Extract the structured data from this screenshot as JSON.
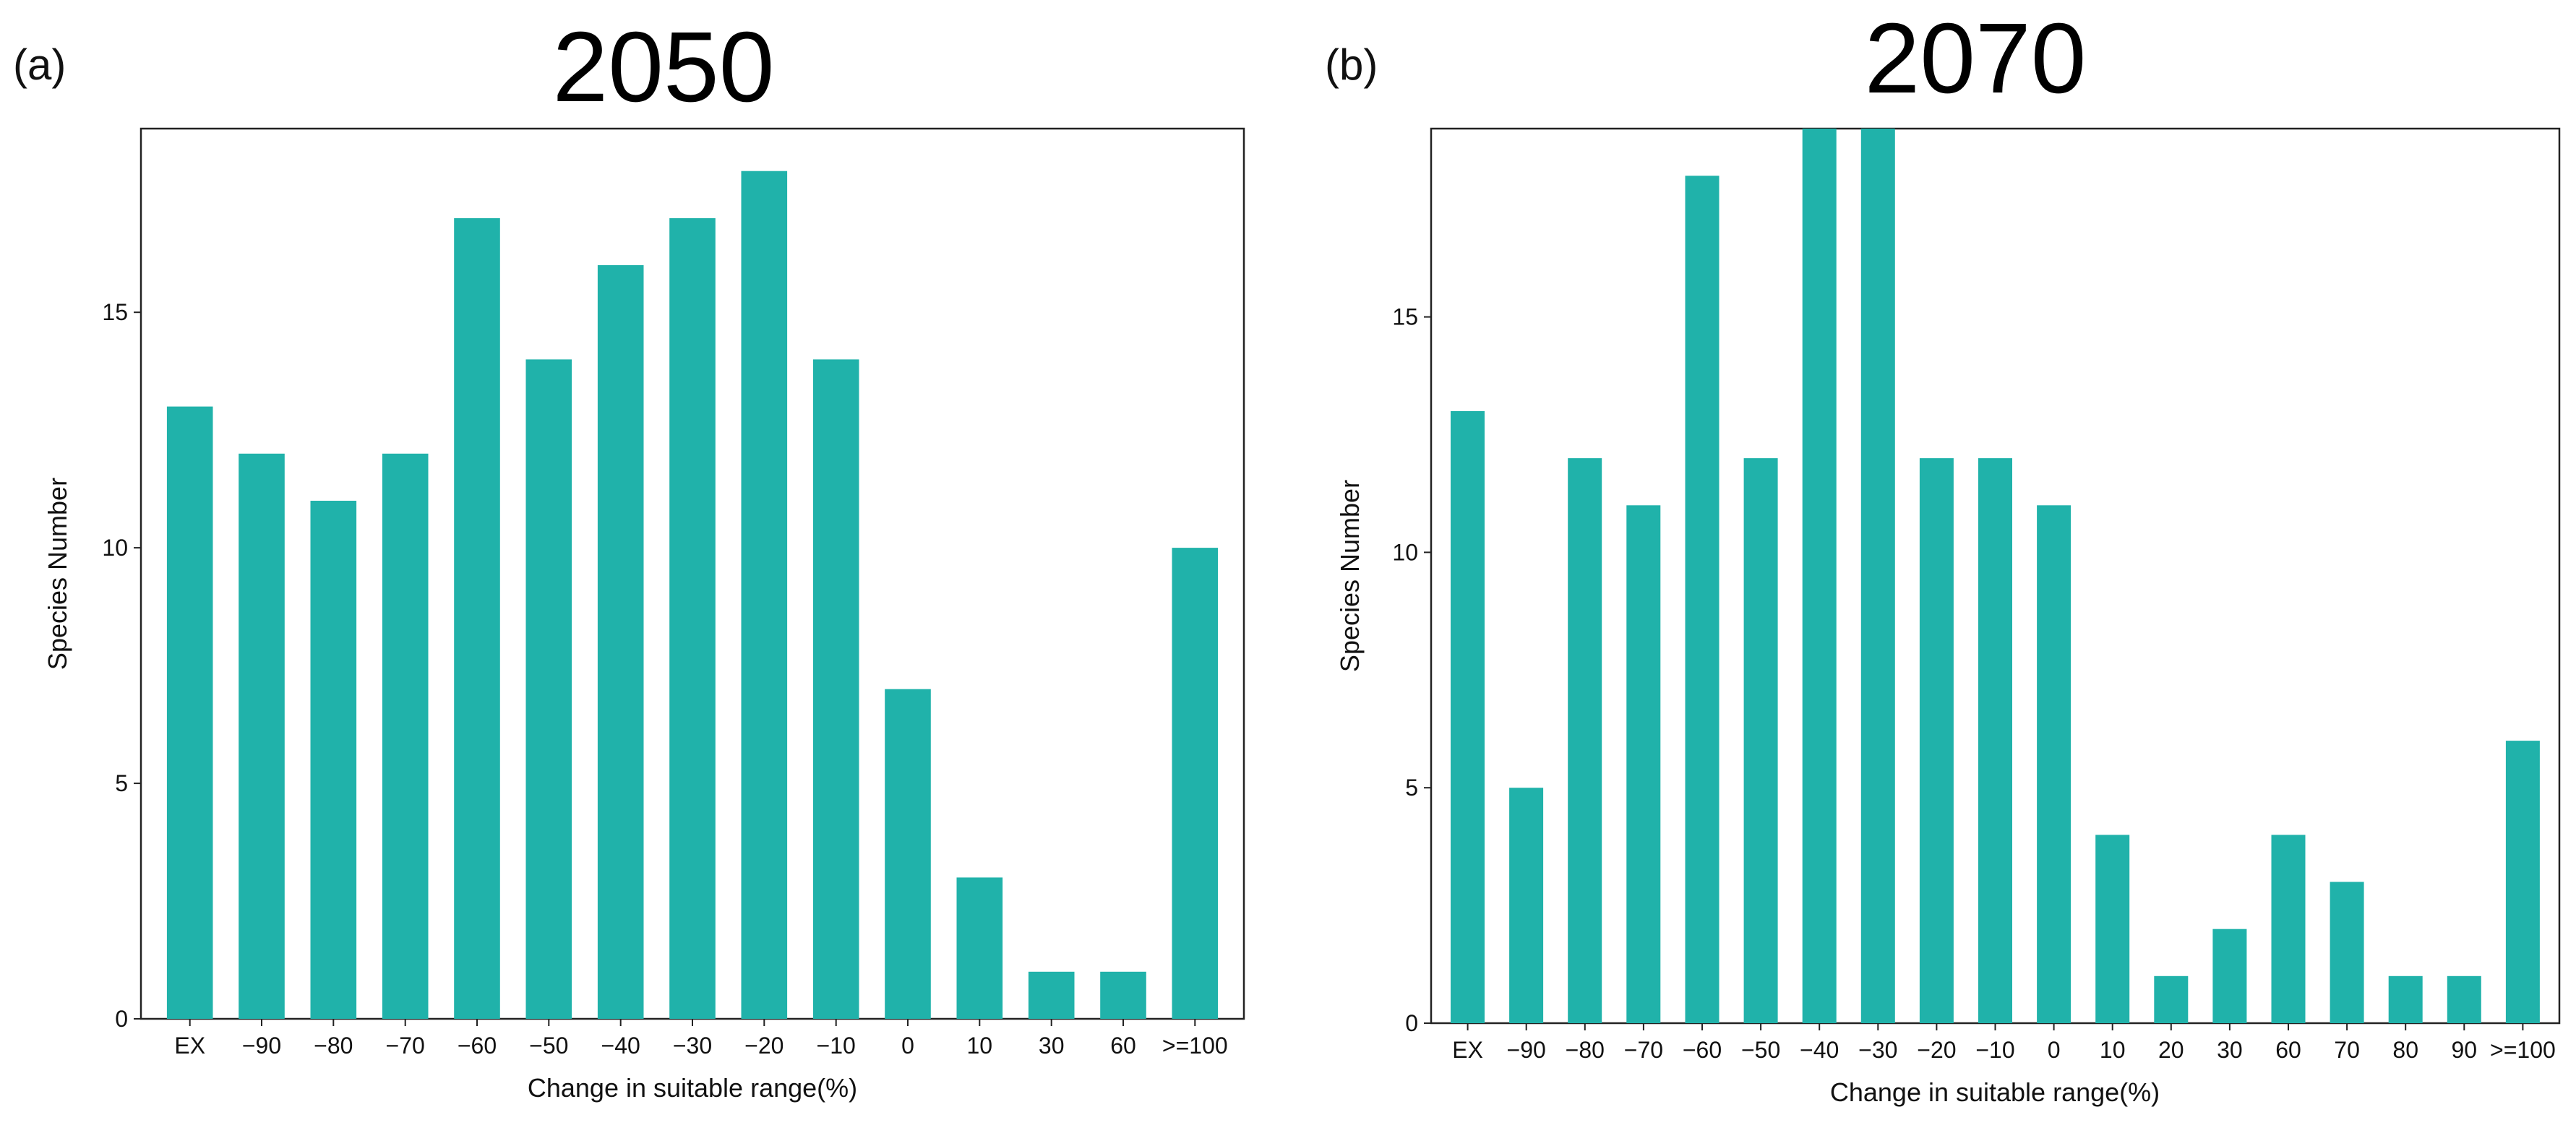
{
  "colors": {
    "bar": "#20B2AA",
    "axis": "#222222"
  },
  "chart_data": [
    {
      "type": "bar",
      "panel_label": "(a)",
      "title": "2050",
      "xlabel": "Change in suitable range(%)",
      "ylabel": "Species Number",
      "ylim": [
        0,
        18.9
      ],
      "yticks": [
        0,
        5,
        10,
        15
      ],
      "categories": [
        "EX",
        "−90",
        "−80",
        "−70",
        "−60",
        "−50",
        "−40",
        "−30",
        "−20",
        "−10",
        "0",
        "10",
        "30",
        "60",
        ">=100"
      ],
      "values": [
        13,
        12,
        11,
        12,
        17,
        14,
        16,
        17,
        18,
        14,
        7,
        3,
        1,
        1,
        10
      ]
    },
    {
      "type": "bar",
      "panel_label": "(b)",
      "title": "2070",
      "xlabel": "Change in suitable range(%)",
      "ylabel": "Species Number",
      "ylim": [
        0,
        19.0
      ],
      "yticks": [
        0,
        5,
        10,
        15
      ],
      "categories": [
        "EX",
        "−90",
        "−80",
        "−70",
        "−60",
        "−50",
        "−40",
        "−30",
        "−20",
        "−10",
        "0",
        "10",
        "20",
        "30",
        "60",
        "70",
        "80",
        "90",
        ">=100"
      ],
      "values": [
        13,
        5,
        12,
        11,
        18,
        12,
        19,
        19,
        12,
        12,
        11,
        4,
        1,
        2,
        4,
        3,
        1,
        1,
        6
      ]
    }
  ]
}
